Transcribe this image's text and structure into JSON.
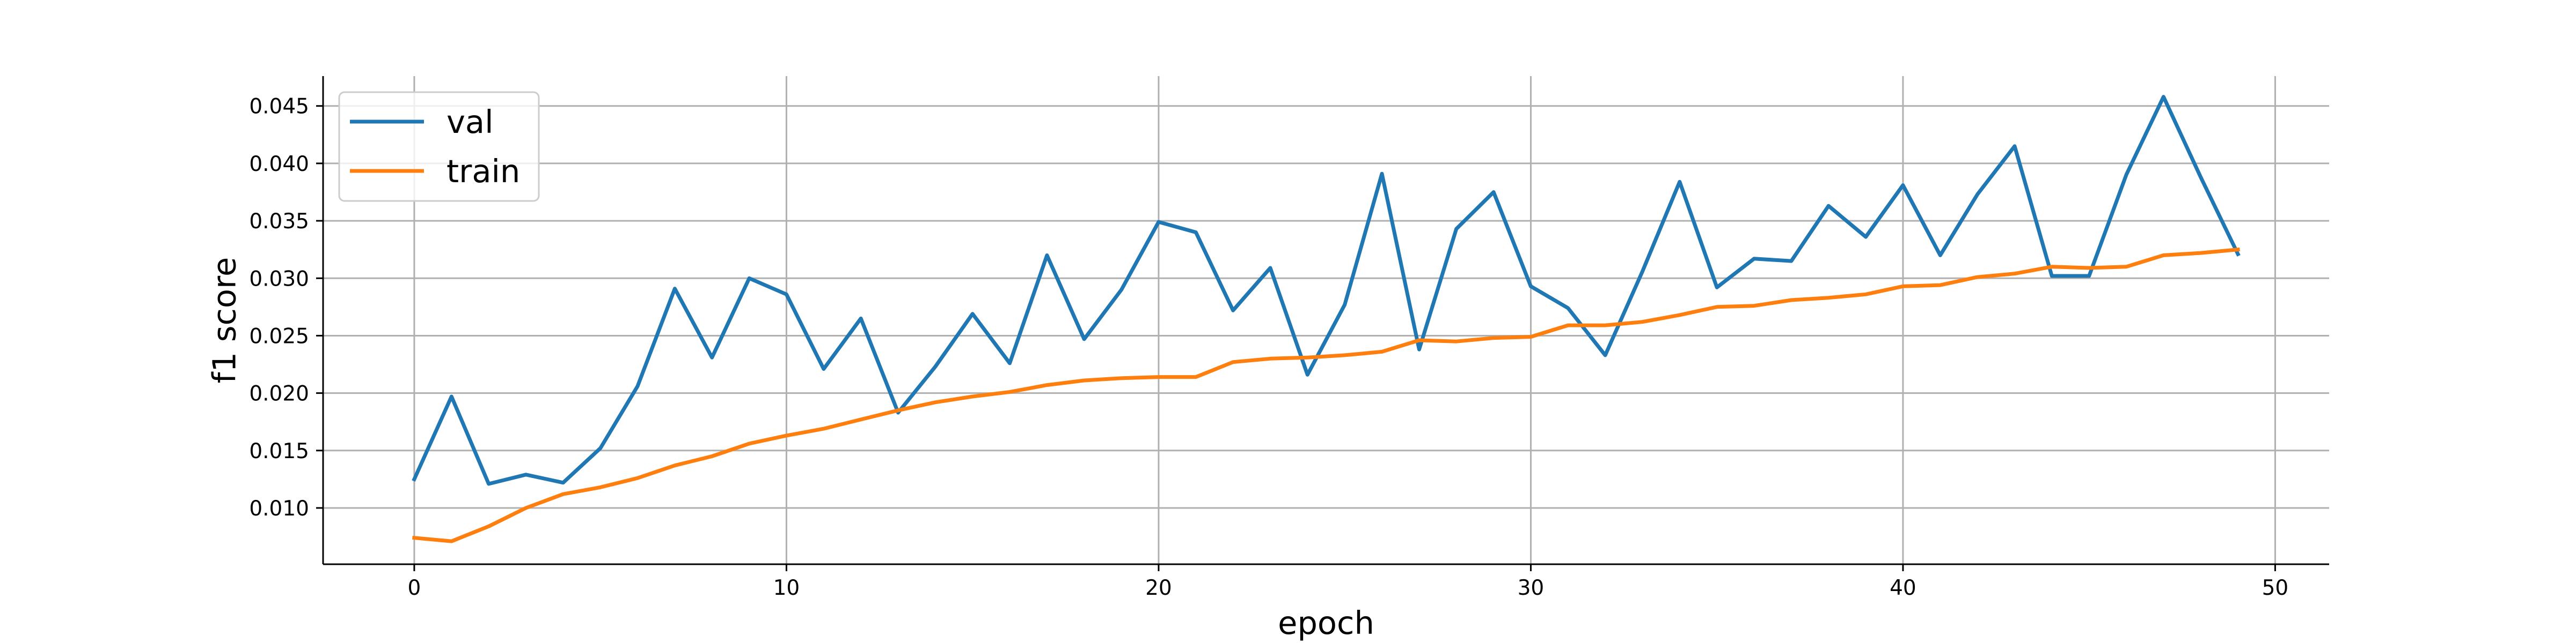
{
  "chart_data": {
    "type": "line",
    "title": "",
    "xlabel": "epoch",
    "ylabel": "f1 score",
    "xlim": [
      -2.45,
      51.45
    ],
    "ylim": [
      0.0051,
      0.0476
    ],
    "x_ticks": [
      0,
      10,
      20,
      30,
      40,
      50
    ],
    "y_ticks": [
      0.01,
      0.015,
      0.02,
      0.025,
      0.03,
      0.035,
      0.04,
      0.045
    ],
    "x_tick_labels": [
      "0",
      "10",
      "20",
      "30",
      "40",
      "50"
    ],
    "y_tick_labels": [
      "0.010",
      "0.015",
      "0.020",
      "0.025",
      "0.030",
      "0.035",
      "0.040",
      "0.045"
    ],
    "grid": true,
    "legend_position": "top-left",
    "x": [
      0,
      1,
      2,
      3,
      4,
      5,
      6,
      7,
      8,
      9,
      10,
      11,
      12,
      13,
      14,
      15,
      16,
      17,
      18,
      19,
      20,
      21,
      22,
      23,
      24,
      25,
      26,
      27,
      28,
      29,
      30,
      31,
      32,
      33,
      34,
      35,
      36,
      37,
      38,
      39,
      40,
      41,
      42,
      43,
      44,
      45,
      46,
      47,
      48,
      49
    ],
    "series": [
      {
        "name": "val",
        "color": "#1f77b4",
        "values": [
          0.0125,
          0.0197,
          0.0121,
          0.0129,
          0.0122,
          0.0152,
          0.0206,
          0.0291,
          0.0231,
          0.03,
          0.0286,
          0.0221,
          0.0265,
          0.0183,
          0.0223,
          0.0269,
          0.0226,
          0.032,
          0.0247,
          0.029,
          0.0349,
          0.034,
          0.0272,
          0.0309,
          0.0216,
          0.0277,
          0.0391,
          0.0238,
          0.0343,
          0.0375,
          0.0293,
          0.0274,
          0.0233,
          0.0306,
          0.0384,
          0.0292,
          0.0317,
          0.0315,
          0.0363,
          0.0336,
          0.0381,
          0.032,
          0.0373,
          0.0415,
          0.0302,
          0.0302,
          0.039,
          0.0458,
          0.0388,
          0.0321
        ]
      },
      {
        "name": "train",
        "color": "#ff7f0e",
        "values": [
          0.0074,
          0.0071,
          0.0084,
          0.01,
          0.0112,
          0.0118,
          0.0126,
          0.0137,
          0.0145,
          0.0156,
          0.0163,
          0.0169,
          0.0177,
          0.0185,
          0.0192,
          0.0197,
          0.0201,
          0.0207,
          0.0211,
          0.0213,
          0.0214,
          0.0214,
          0.0227,
          0.023,
          0.0231,
          0.0233,
          0.0236,
          0.0246,
          0.0245,
          0.0248,
          0.0249,
          0.0259,
          0.0259,
          0.0262,
          0.0268,
          0.0275,
          0.0276,
          0.0281,
          0.0283,
          0.0286,
          0.0293,
          0.0294,
          0.0301,
          0.0304,
          0.031,
          0.0309,
          0.031,
          0.032,
          0.0322,
          0.0325
        ]
      }
    ]
  }
}
